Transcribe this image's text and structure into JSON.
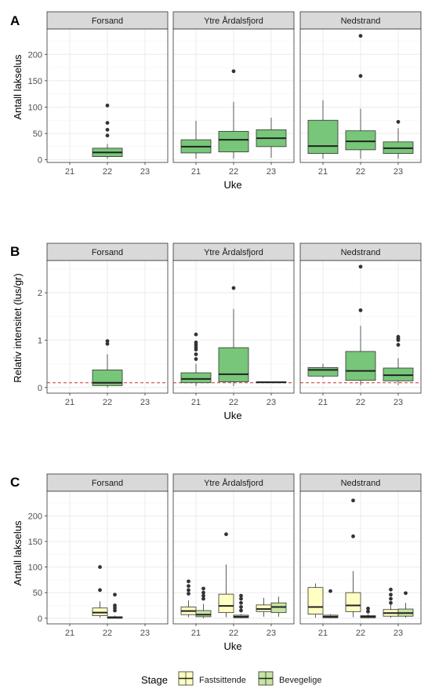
{
  "chart_data": [
    {
      "type": "boxplot",
      "panel_tag": "A",
      "facets": [
        "Forsand",
        "Ytre Årdalsfjord",
        "Nedstrand"
      ],
      "categories": [
        "21",
        "22",
        "23"
      ],
      "xlabel": "Uke",
      "ylabel": "Antall lakselus",
      "ylim": [
        -5,
        248
      ],
      "yticks": [
        0,
        50,
        100,
        150,
        200
      ],
      "boxes": [
        {
          "facet": "Forsand",
          "x": "22",
          "stage": "Bevegelige",
          "min": 2,
          "q1": 6,
          "median": 14,
          "q3": 22,
          "max": 30,
          "outliers": [
            103,
            70,
            57,
            46
          ]
        },
        {
          "facet": "Ytre Årdalsfjord",
          "x": "21",
          "stage": "Bevegelige",
          "min": 2,
          "q1": 13,
          "median": 25,
          "q3": 38,
          "max": 74,
          "outliers": []
        },
        {
          "facet": "Ytre Årdalsfjord",
          "x": "22",
          "stage": "Bevegelige",
          "min": 2,
          "q1": 15,
          "median": 38,
          "q3": 54,
          "max": 110,
          "outliers": [
            168
          ]
        },
        {
          "facet": "Ytre Årdalsfjord",
          "x": "23",
          "stage": "Bevegelige",
          "min": 4,
          "q1": 25,
          "median": 41,
          "q3": 57,
          "max": 80,
          "outliers": []
        },
        {
          "facet": "Nedstrand",
          "x": "21",
          "stage": "Bevegelige",
          "min": 2,
          "q1": 12,
          "median": 26,
          "q3": 75,
          "max": 113,
          "outliers": []
        },
        {
          "facet": "Nedstrand",
          "x": "22",
          "stage": "Bevegelige",
          "min": 2,
          "q1": 19,
          "median": 35,
          "q3": 55,
          "max": 97,
          "outliers": [
            235,
            159
          ]
        },
        {
          "facet": "Nedstrand",
          "x": "23",
          "stage": "Bevegelige",
          "min": 2,
          "q1": 12,
          "median": 22,
          "q3": 34,
          "max": 60,
          "outliers": [
            72
          ]
        }
      ]
    },
    {
      "type": "boxplot",
      "panel_tag": "B",
      "facets": [
        "Forsand",
        "Ytre Årdalsfjord",
        "Nedstrand"
      ],
      "categories": [
        "21",
        "22",
        "23"
      ],
      "xlabel": "Uke",
      "ylabel": "Relativ intensitet (lus/gr)",
      "ylim": [
        -0.12,
        2.68
      ],
      "yticks": [
        0,
        1,
        2
      ],
      "reference_line": {
        "y": 0.1,
        "color": "#c0392b",
        "style": "dashed"
      },
      "boxes": [
        {
          "facet": "Forsand",
          "x": "22",
          "stage": "Bevegelige",
          "min": 0.0,
          "q1": 0.04,
          "median": 0.1,
          "q3": 0.37,
          "max": 0.7,
          "outliers": [
            0.98,
            0.92
          ]
        },
        {
          "facet": "Ytre Årdalsfjord",
          "x": "21",
          "stage": "Bevegelige",
          "min": 0.03,
          "q1": 0.1,
          "median": 0.18,
          "q3": 0.31,
          "max": 0.5,
          "outliers": [
            1.12,
            0.95,
            0.9,
            0.85,
            0.8,
            0.7,
            0.6
          ]
        },
        {
          "facet": "Ytre Årdalsfjord",
          "x": "22",
          "stage": "Bevegelige",
          "min": 0.03,
          "q1": 0.12,
          "median": 0.28,
          "q3": 0.84,
          "max": 1.66,
          "outliers": [
            2.1
          ]
        },
        {
          "facet": "Ytre Årdalsfjord",
          "x": "23",
          "stage": "Bevegelige",
          "min": 0.1,
          "q1": 0.1,
          "median": 0.11,
          "q3": 0.12,
          "max": 0.12,
          "outliers": []
        },
        {
          "facet": "Nedstrand",
          "x": "21",
          "stage": "Bevegelige",
          "min": 0.2,
          "q1": 0.24,
          "median": 0.37,
          "q3": 0.42,
          "max": 0.5,
          "outliers": []
        },
        {
          "facet": "Nedstrand",
          "x": "22",
          "stage": "Bevegelige",
          "min": 0.05,
          "q1": 0.15,
          "median": 0.35,
          "q3": 0.76,
          "max": 1.3,
          "outliers": [
            2.55,
            1.63
          ]
        },
        {
          "facet": "Nedstrand",
          "x": "23",
          "stage": "Bevegelige",
          "min": 0.05,
          "q1": 0.14,
          "median": 0.26,
          "q3": 0.41,
          "max": 0.62,
          "outliers": [
            1.07,
            1.03,
            1.0,
            0.9
          ]
        }
      ]
    },
    {
      "type": "boxplot",
      "panel_tag": "C",
      "facets": [
        "Forsand",
        "Ytre Årdalsfjord",
        "Nedstrand"
      ],
      "categories": [
        "21",
        "22",
        "23"
      ],
      "xlabel": "Uke",
      "ylabel": "Antall lakselus",
      "ylim": [
        -11,
        248
      ],
      "yticks": [
        0,
        50,
        100,
        150,
        200
      ],
      "legend": {
        "title": "Stage",
        "position": "bottom",
        "entries": [
          {
            "name": "Fastsittende",
            "color": "#ffffc2"
          },
          {
            "name": "Bevegelige",
            "color": "#c6e4a3"
          }
        ]
      },
      "boxes": [
        {
          "facet": "Forsand",
          "x": "22",
          "stage": "Fastsittende",
          "min": 1,
          "q1": 5,
          "median": 11,
          "q3": 20,
          "max": 33,
          "outliers": [
            100,
            55
          ]
        },
        {
          "facet": "Forsand",
          "x": "22",
          "stage": "Bevegelige",
          "min": 0,
          "q1": 0,
          "median": 1,
          "q3": 3,
          "max": 5,
          "outliers": [
            46,
            25,
            20,
            15
          ]
        },
        {
          "facet": "Ytre Årdalsfjord",
          "x": "21",
          "stage": "Fastsittende",
          "min": 2,
          "q1": 7,
          "median": 14,
          "q3": 22,
          "max": 35,
          "outliers": [
            72,
            63,
            55,
            48
          ]
        },
        {
          "facet": "Ytre Årdalsfjord",
          "x": "21",
          "stage": "Bevegelige",
          "min": 0,
          "q1": 3,
          "median": 7,
          "q3": 15,
          "max": 28,
          "outliers": [
            58,
            50,
            44,
            38
          ]
        },
        {
          "facet": "Ytre Årdalsfjord",
          "x": "22",
          "stage": "Fastsittende",
          "min": 2,
          "q1": 11,
          "median": 24,
          "q3": 47,
          "max": 105,
          "outliers": [
            164
          ]
        },
        {
          "facet": "Ytre Årdalsfjord",
          "x": "22",
          "stage": "Bevegelige",
          "min": 0,
          "q1": 1,
          "median": 3,
          "q3": 6,
          "max": 8,
          "outliers": [
            44,
            38,
            30,
            22,
            15
          ]
        },
        {
          "facet": "Ytre Årdalsfjord",
          "x": "23",
          "stage": "Fastsittende",
          "min": 3,
          "q1": 13,
          "median": 18,
          "q3": 26,
          "max": 40,
          "outliers": []
        },
        {
          "facet": "Ytre Årdalsfjord",
          "x": "23",
          "stage": "Bevegelige",
          "min": 3,
          "q1": 11,
          "median": 22,
          "q3": 30,
          "max": 42,
          "outliers": []
        },
        {
          "facet": "Nedstrand",
          "x": "21",
          "stage": "Fastsittende",
          "min": 1,
          "q1": 8,
          "median": 22,
          "q3": 60,
          "max": 68,
          "outliers": []
        },
        {
          "facet": "Nedstrand",
          "x": "21",
          "stage": "Bevegelige",
          "min": 0,
          "q1": 1,
          "median": 3,
          "q3": 6,
          "max": 8,
          "outliers": [
            53
          ]
        },
        {
          "facet": "Nedstrand",
          "x": "22",
          "stage": "Fastsittende",
          "min": 2,
          "q1": 13,
          "median": 25,
          "q3": 50,
          "max": 92,
          "outliers": [
            230,
            160
          ]
        },
        {
          "facet": "Nedstrand",
          "x": "22",
          "stage": "Bevegelige",
          "min": 0,
          "q1": 1,
          "median": 3,
          "q3": 5,
          "max": 8,
          "outliers": [
            19,
            13
          ]
        },
        {
          "facet": "Nedstrand",
          "x": "23",
          "stage": "Fastsittende",
          "min": 1,
          "q1": 4,
          "median": 10,
          "q3": 17,
          "max": 30,
          "outliers": [
            56,
            46,
            38,
            30
          ]
        },
        {
          "facet": "Nedstrand",
          "x": "23",
          "stage": "Bevegelige",
          "min": 1,
          "q1": 4,
          "median": 10,
          "q3": 18,
          "max": 30,
          "outliers": [
            49
          ]
        }
      ]
    }
  ],
  "colors": {
    "single_box_fill": "#78c679",
    "fastsittende_fill": "#ffffc2",
    "bevegelige_fill": "#c6e4a3",
    "strip_fill": "#d9d9d9",
    "grid": "#ebebeb",
    "reference_line": "#c0392b"
  }
}
